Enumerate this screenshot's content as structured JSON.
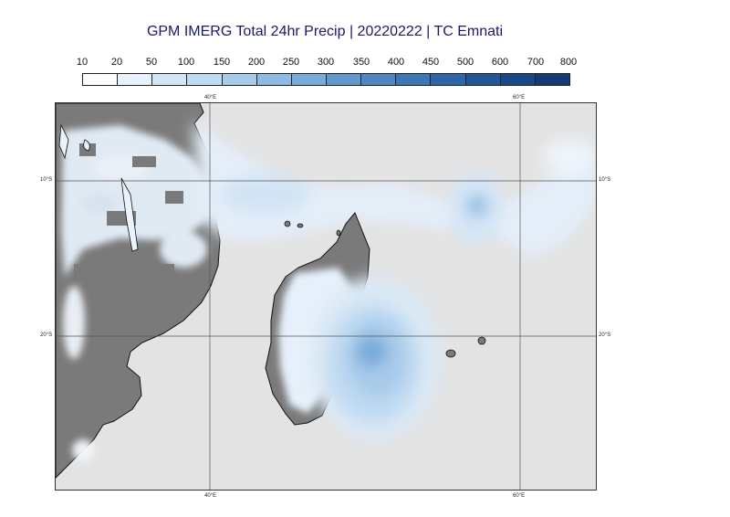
{
  "title": "GPM IMERG Total 24hr Precip | 20220222 | TC Emnati",
  "legend": {
    "labels": [
      "10",
      "20",
      "50",
      "100",
      "150",
      "200",
      "250",
      "300",
      "350",
      "400",
      "450",
      "500",
      "600",
      "700",
      "800"
    ],
    "colors": [
      "#fbfdff",
      "#e7f1fb",
      "#d4e6f6",
      "#c0daf1",
      "#a8cbea",
      "#8fbbe2",
      "#78abd9",
      "#6299cd",
      "#4f88c1",
      "#3e77b5",
      "#2f66a7",
      "#235697",
      "#1a4785",
      "#133a72"
    ]
  },
  "colors": {
    "ocean": "#e3e3e3",
    "land": "#7a7a7a",
    "coastline": "#111111",
    "gridline": "#555555"
  },
  "grid": {
    "longitude_labels": [
      "40°E",
      "60°E"
    ],
    "latitude_labels": [
      "10°S",
      "20°S"
    ]
  },
  "map": {
    "features": [
      "Africa",
      "Madagascar",
      "Mauritius",
      "Réunion"
    ],
    "precip_field": "24hr total precipitation (mm)"
  }
}
